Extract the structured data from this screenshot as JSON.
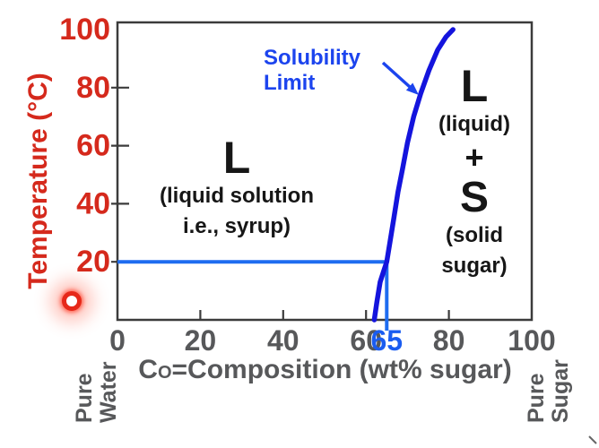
{
  "figure": {
    "y_axis_title": "Temperature (°C)",
    "x_axis_label": {
      "symbol": "C",
      "subscript": "O",
      "rest": "=Composition (wt% sugar)"
    },
    "annotation": {
      "line1": "Solubility",
      "line2": "Limit"
    },
    "regions": {
      "syrup": {
        "phase": "L",
        "line1": "(liquid solution",
        "line2": "i.e., syrup)"
      },
      "two_phase": {
        "phase1": "L",
        "desc1": "(liquid)",
        "plus": "+",
        "phase2": "S",
        "desc2": "(solid",
        "desc3": "sugar)"
      }
    },
    "left_end_label": [
      "Pure",
      "Water"
    ],
    "right_end_label": [
      "Pure",
      "Sugar"
    ]
  },
  "chart_data": {
    "type": "line",
    "title": "",
    "xlabel": "CO=Composition (wt% sugar)",
    "ylabel": "Temperature (°C)",
    "xlim": [
      0,
      100
    ],
    "ylim": [
      0,
      100
    ],
    "x_ticks": [
      0,
      20,
      40,
      60,
      80,
      100
    ],
    "y_ticks": [
      20,
      40,
      60,
      80,
      100
    ],
    "grid": false,
    "legend": "none",
    "series": [
      {
        "name": "Solubility Limit",
        "points": [
          [
            62,
            0
          ],
          [
            62.6,
            6
          ],
          [
            63.4,
            13
          ],
          [
            64.3,
            17
          ],
          [
            65,
            20
          ],
          [
            65.8,
            27
          ],
          [
            66.7,
            35
          ],
          [
            67.7,
            44
          ],
          [
            68.8,
            52
          ],
          [
            70,
            61
          ],
          [
            71.5,
            70
          ],
          [
            73.2,
            78
          ],
          [
            75.2,
            86
          ],
          [
            77.3,
            93
          ],
          [
            79.3,
            97.5
          ],
          [
            81,
            100
          ]
        ]
      }
    ],
    "highlight": {
      "composition": 65,
      "temperature": 20,
      "label": "65"
    },
    "tie_lines": [
      {
        "from": [
          0,
          20
        ],
        "to": [
          65,
          20
        ]
      },
      {
        "from": [
          65,
          20
        ],
        "to": [
          65,
          0
        ],
        "extends_below_axis": true
      }
    ],
    "annotations": [
      {
        "text": "Solubility Limit",
        "arrow_to": [
          73,
          78
        ]
      },
      {
        "text": "L (liquid solution i.e., syrup)",
        "region": "left of curve"
      },
      {
        "text": "L (liquid) + S (solid sugar)",
        "region": "right of curve"
      },
      {
        "text": "Pure Water",
        "position": "x = 0"
      },
      {
        "text": "Pure Sugar",
        "position": "x = 100"
      }
    ],
    "colors": {
      "curve": "#1414dd",
      "tie_line": "#1e6cf0",
      "annotation_text": "#1c44ee",
      "highlight_text": "#1a5cf0",
      "axis": "#3b3b3b",
      "x_tick_text": "#57585a",
      "y_tick_text": "#d5291c",
      "region_text": "#161616",
      "laser_pointer": "#e62819"
    }
  }
}
